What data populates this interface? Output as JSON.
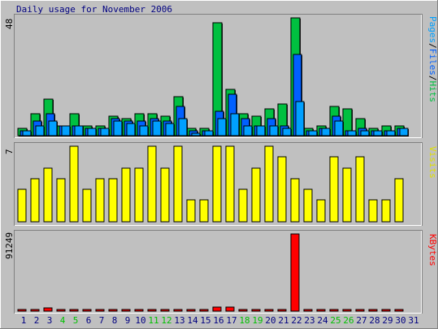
{
  "chart_data": [
    {
      "type": "bar",
      "title": "Daily usage for November 2006",
      "ymax_label": "48",
      "ylabel_parts": [
        {
          "text": "Pages",
          "color": "#00a0ff"
        },
        {
          "text": "/",
          "color": "#000000"
        },
        {
          "text": "Files",
          "color": "#0060ff"
        },
        {
          "text": "/",
          "color": "#000000"
        },
        {
          "text": "Hits",
          "color": "#00c040"
        }
      ],
      "ylim": [
        0,
        48
      ],
      "series": [
        {
          "name": "Hits",
          "color": "#00c040",
          "values": [
            3,
            9,
            15,
            4,
            9,
            4,
            4,
            8,
            7,
            9,
            9,
            8,
            16,
            3,
            3,
            46,
            19,
            9,
            8,
            11,
            13,
            48,
            3,
            4,
            12,
            11,
            7,
            3,
            4,
            4,
            0
          ]
        },
        {
          "name": "Files",
          "color": "#0060ff",
          "values": [
            2,
            6,
            9,
            4,
            4,
            3,
            3,
            7,
            6,
            6,
            7,
            6,
            12,
            2,
            2,
            10,
            17,
            7,
            4,
            7,
            4,
            33,
            2,
            3,
            8,
            2,
            3,
            2,
            2,
            3,
            0
          ]
        },
        {
          "name": "Pages",
          "color": "#00a0ff",
          "values": [
            2,
            4,
            6,
            4,
            4,
            3,
            3,
            6,
            5,
            4,
            6,
            5,
            7,
            1,
            2,
            7,
            9,
            4,
            4,
            4,
            3,
            14,
            2,
            3,
            6,
            2,
            2,
            2,
            2,
            3,
            0
          ]
        }
      ]
    },
    {
      "type": "bar",
      "ymax_label": "7",
      "ylabel_parts": [
        {
          "text": "Visits",
          "color": "#e0e000"
        }
      ],
      "ylim": [
        0,
        7
      ],
      "series": [
        {
          "name": "Visits",
          "color": "#ffff00",
          "values": [
            3,
            4,
            5,
            4,
            7,
            3,
            4,
            4,
            5,
            5,
            7,
            5,
            7,
            2,
            2,
            7,
            7,
            3,
            5,
            7,
            6,
            4,
            3,
            2,
            6,
            5,
            6,
            2,
            2,
            4,
            0
          ]
        }
      ]
    },
    {
      "type": "bar",
      "ymax_label": "91249",
      "ylabel_parts": [
        {
          "text": "KBytes",
          "color": "#ff0000"
        }
      ],
      "ylim": [
        0,
        91249
      ],
      "series": [
        {
          "name": "KBytes",
          "color": "#ff0000",
          "values": [
            1000,
            2000,
            3500,
            1000,
            1000,
            1000,
            1000,
            1000,
            1000,
            1000,
            1000,
            1000,
            1000,
            2000,
            1000,
            4500,
            5000,
            2000,
            1500,
            2000,
            2000,
            91249,
            1000,
            1000,
            2000,
            1000,
            1000,
            1000,
            1000,
            1000,
            0
          ]
        }
      ]
    }
  ],
  "days": [
    "1",
    "2",
    "3",
    "4",
    "5",
    "6",
    "7",
    "8",
    "9",
    "10",
    "11",
    "12",
    "13",
    "14",
    "15",
    "16",
    "17",
    "18",
    "19",
    "20",
    "21",
    "22",
    "23",
    "24",
    "25",
    "26",
    "27",
    "28",
    "29",
    "30",
    "31"
  ],
  "weekend_days": [
    "4",
    "5",
    "11",
    "12",
    "18",
    "19",
    "25",
    "26"
  ],
  "colors": {
    "background": "#c0c0c0",
    "weekday_label": "#000080",
    "weekend_label": "#00c000"
  }
}
